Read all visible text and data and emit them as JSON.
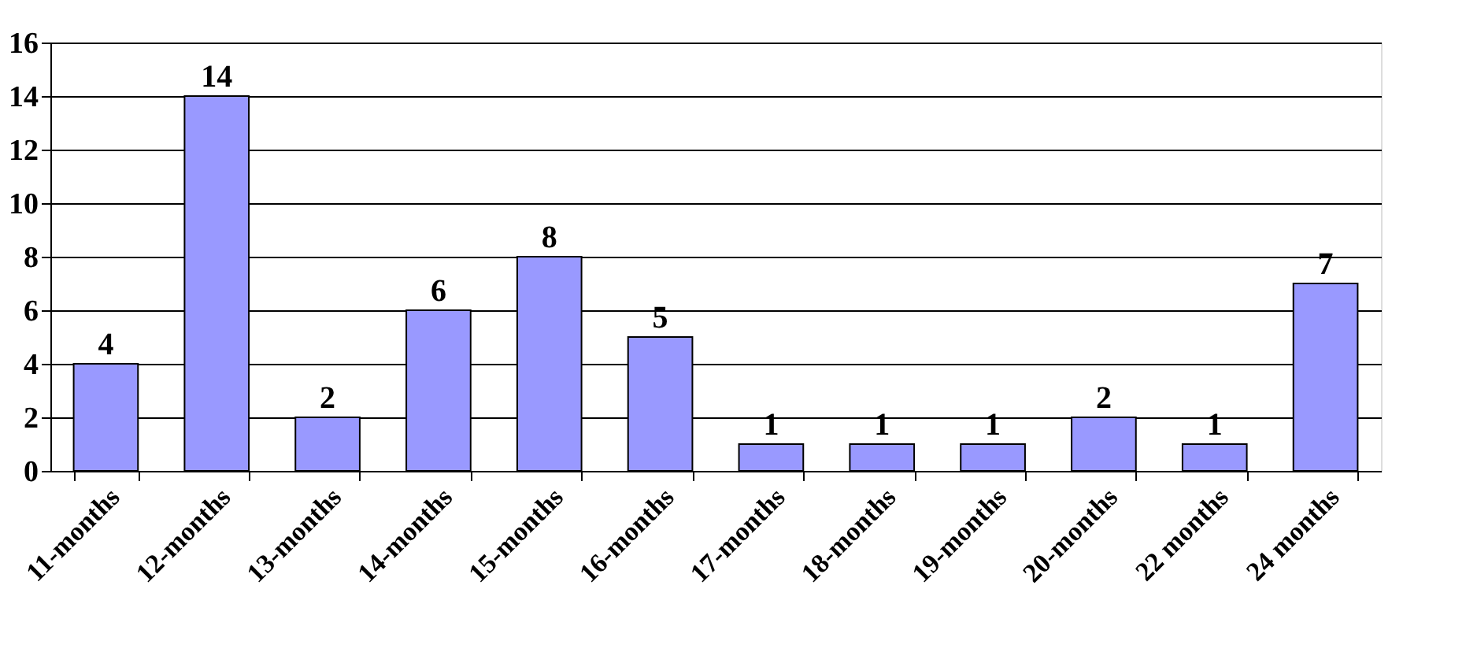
{
  "chart_data": {
    "type": "bar",
    "categories": [
      "11-months",
      "12-months",
      "13-months",
      "14-months",
      "15-months",
      "16-months",
      "17-months",
      "18-months",
      "19-months",
      "20-months",
      "22 months",
      "24 months"
    ],
    "values": [
      4,
      14,
      2,
      6,
      8,
      5,
      1,
      1,
      1,
      2,
      1,
      7
    ],
    "color": "#9999ff",
    "ylim": [
      0,
      16
    ],
    "yticks": [
      0,
      2,
      4,
      6,
      8,
      10,
      12,
      14,
      16
    ],
    "grid": "y",
    "data_labels": true
  }
}
